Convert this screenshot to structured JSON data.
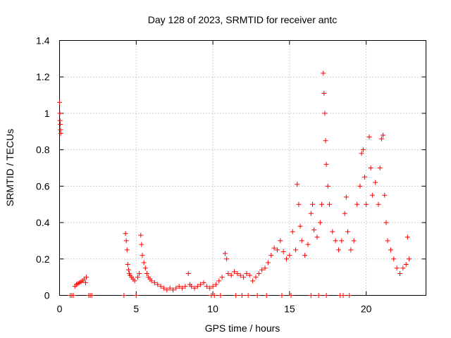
{
  "chart_data": {
    "type": "scatter",
    "title": "Day 128 of 2023, SRMTID for receiver antc",
    "xlabel": "GPS time / hours",
    "ylabel": "SRMTID / TECUs",
    "xlim": [
      0,
      23.9
    ],
    "ylim": [
      0,
      1.4
    ],
    "xticks": [
      0,
      5,
      10,
      15,
      20
    ],
    "xtick_labels": [
      "0",
      "5",
      "10",
      "15",
      "20"
    ],
    "yticks": [
      0,
      0.2,
      0.4,
      0.6,
      0.8,
      1,
      1.2,
      1.4
    ],
    "ytick_labels": [
      "0",
      "0.2",
      "0.4",
      "0.6",
      "0.8",
      "1",
      "1.2",
      "1.4"
    ],
    "grid": true,
    "marker": "+",
    "series": [
      {
        "name": "SRMTID",
        "color": "#ff0000",
        "points": [
          [
            0.0,
            1.06
          ],
          [
            0.02,
            1.0
          ],
          [
            0.03,
            0.96
          ],
          [
            0.05,
            0.94
          ],
          [
            0.06,
            0.91
          ],
          [
            0.08,
            0.89
          ],
          [
            0.7,
            0.0
          ],
          [
            0.8,
            0.0
          ],
          [
            0.9,
            0.0
          ],
          [
            1.0,
            0.05
          ],
          [
            1.1,
            0.06
          ],
          [
            1.2,
            0.065
          ],
          [
            1.3,
            0.07
          ],
          [
            1.4,
            0.075
          ],
          [
            1.5,
            0.08
          ],
          [
            1.6,
            0.09
          ],
          [
            1.7,
            0.07
          ],
          [
            1.75,
            0.1
          ],
          [
            1.9,
            0.0
          ],
          [
            2.0,
            0.0
          ],
          [
            2.1,
            0.0
          ],
          [
            4.2,
            0.0
          ],
          [
            4.3,
            0.34
          ],
          [
            4.35,
            0.3
          ],
          [
            4.4,
            0.25
          ],
          [
            4.45,
            0.17
          ],
          [
            4.5,
            0.14
          ],
          [
            4.55,
            0.12
          ],
          [
            4.6,
            0.11
          ],
          [
            4.7,
            0.1
          ],
          [
            4.8,
            0.09
          ],
          [
            4.9,
            0.08
          ],
          [
            5.0,
            0.0
          ],
          [
            5.1,
            0.1
          ],
          [
            5.2,
            0.12
          ],
          [
            5.3,
            0.33
          ],
          [
            5.35,
            0.28
          ],
          [
            5.4,
            0.22
          ],
          [
            5.5,
            0.18
          ],
          [
            5.6,
            0.15
          ],
          [
            5.7,
            0.12
          ],
          [
            5.8,
            0.1
          ],
          [
            5.9,
            0.09
          ],
          [
            6.0,
            0.08
          ],
          [
            6.2,
            0.07
          ],
          [
            6.4,
            0.06
          ],
          [
            6.6,
            0.05
          ],
          [
            6.8,
            0.04
          ],
          [
            7.0,
            0.03
          ],
          [
            7.2,
            0.04
          ],
          [
            7.4,
            0.03
          ],
          [
            7.6,
            0.04
          ],
          [
            7.8,
            0.05
          ],
          [
            8.0,
            0.04
          ],
          [
            8.2,
            0.05
          ],
          [
            8.4,
            0.12
          ],
          [
            8.5,
            0.06
          ],
          [
            8.6,
            0.05
          ],
          [
            8.8,
            0.04
          ],
          [
            9.0,
            0.05
          ],
          [
            9.2,
            0.06
          ],
          [
            9.4,
            0.07
          ],
          [
            9.6,
            0.05
          ],
          [
            9.8,
            0.04
          ],
          [
            10.0,
            0.05
          ],
          [
            10.2,
            0.06
          ],
          [
            10.4,
            0.08
          ],
          [
            10.6,
            0.1
          ],
          [
            10.8,
            0.23
          ],
          [
            10.9,
            0.2
          ],
          [
            11.0,
            0.12
          ],
          [
            11.2,
            0.11
          ],
          [
            11.4,
            0.13
          ],
          [
            11.6,
            0.12
          ],
          [
            11.8,
            0.11
          ],
          [
            12.0,
            0.1
          ],
          [
            12.2,
            0.12
          ],
          [
            12.4,
            0.11
          ],
          [
            12.6,
            0.08
          ],
          [
            12.8,
            0.1
          ],
          [
            13.0,
            0.12
          ],
          [
            13.2,
            0.14
          ],
          [
            13.4,
            0.15
          ],
          [
            13.6,
            0.18
          ],
          [
            13.8,
            0.22
          ],
          [
            14.0,
            0.26
          ],
          [
            14.2,
            0.25
          ],
          [
            14.4,
            0.3
          ],
          [
            14.6,
            0.24
          ],
          [
            14.8,
            0.2
          ],
          [
            15.0,
            0.22
          ],
          [
            15.2,
            0.35
          ],
          [
            15.4,
            0.25
          ],
          [
            15.5,
            0.61
          ],
          [
            15.6,
            0.5
          ],
          [
            15.7,
            0.38
          ],
          [
            15.8,
            0.3
          ],
          [
            16.0,
            0.22
          ],
          [
            16.2,
            0.28
          ],
          [
            16.4,
            0.45
          ],
          [
            16.5,
            0.5
          ],
          [
            16.6,
            0.36
          ],
          [
            16.8,
            0.32
          ],
          [
            17.0,
            0.4
          ],
          [
            17.1,
            0.5
          ],
          [
            17.2,
            1.22
          ],
          [
            17.25,
            1.11
          ],
          [
            17.3,
            1.0
          ],
          [
            17.35,
            0.85
          ],
          [
            17.4,
            0.72
          ],
          [
            17.5,
            0.6
          ],
          [
            17.6,
            0.5
          ],
          [
            17.8,
            0.35
          ],
          [
            18.0,
            0.3
          ],
          [
            18.2,
            0.25
          ],
          [
            18.4,
            0.3
          ],
          [
            18.6,
            0.45
          ],
          [
            18.7,
            0.54
          ],
          [
            18.8,
            0.35
          ],
          [
            19.0,
            0.25
          ],
          [
            19.2,
            0.3
          ],
          [
            19.4,
            0.5
          ],
          [
            19.6,
            0.6
          ],
          [
            19.7,
            0.78
          ],
          [
            19.8,
            0.8
          ],
          [
            19.9,
            0.65
          ],
          [
            20.0,
            0.5
          ],
          [
            20.2,
            0.87
          ],
          [
            20.3,
            0.7
          ],
          [
            20.4,
            0.55
          ],
          [
            20.6,
            0.62
          ],
          [
            20.8,
            0.5
          ],
          [
            20.9,
            0.7
          ],
          [
            21.0,
            0.86
          ],
          [
            21.1,
            0.88
          ],
          [
            21.2,
            0.55
          ],
          [
            21.3,
            0.4
          ],
          [
            21.4,
            0.3
          ],
          [
            21.6,
            0.25
          ],
          [
            21.8,
            0.2
          ],
          [
            22.0,
            0.15
          ],
          [
            22.2,
            0.12
          ],
          [
            22.4,
            0.15
          ],
          [
            22.6,
            0.17
          ],
          [
            22.7,
            0.32
          ],
          [
            22.8,
            0.2
          ],
          [
            9.9,
            0.0
          ],
          [
            10.1,
            0.0
          ],
          [
            10.5,
            0.0
          ],
          [
            11.5,
            0.0
          ],
          [
            11.9,
            0.0
          ],
          [
            12.3,
            0.0
          ],
          [
            12.9,
            0.0
          ],
          [
            13.5,
            0.0
          ],
          [
            14.5,
            0.0
          ],
          [
            15.1,
            0.0
          ],
          [
            16.4,
            0.0
          ],
          [
            16.9,
            0.0
          ],
          [
            17.4,
            0.0
          ],
          [
            18.3,
            0.0
          ],
          [
            18.5,
            0.0
          ],
          [
            18.9,
            0.0
          ]
        ]
      }
    ]
  }
}
